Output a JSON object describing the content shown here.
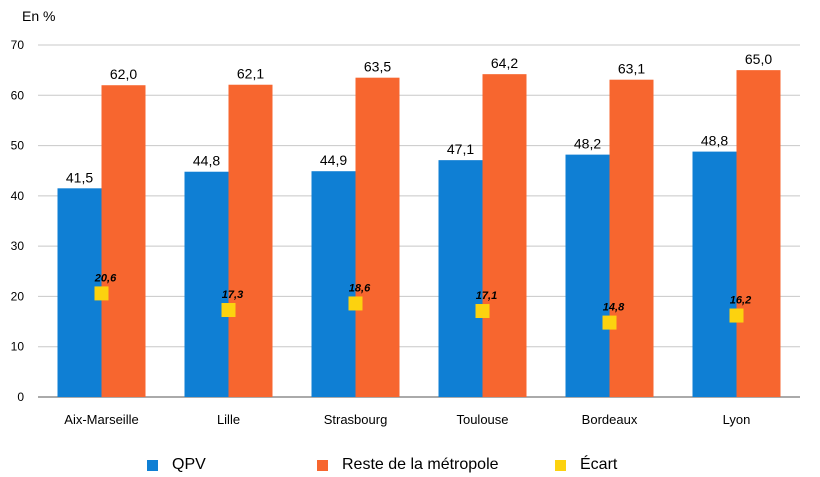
{
  "y_unit_label": "En %",
  "chart_data": {
    "type": "bar",
    "categories": [
      "Aix-Marseille",
      "Lille",
      "Strasbourg",
      "Toulouse",
      "Bordeaux",
      "Lyon"
    ],
    "series": [
      {
        "name": "QPV",
        "kind": "bar",
        "color": "#0f7fd4",
        "values": [
          41.5,
          44.8,
          44.9,
          47.1,
          48.2,
          48.8
        ],
        "labels": [
          "41,5",
          "44,8",
          "44,9",
          "47,1",
          "48,2",
          "48,8"
        ]
      },
      {
        "name": "Reste de la métropole",
        "kind": "bar",
        "color": "#f7662f",
        "values": [
          62.0,
          62.1,
          63.5,
          64.2,
          63.1,
          65.0
        ],
        "labels": [
          "62,0",
          "62,1",
          "63,5",
          "64,2",
          "63,1",
          "65,0"
        ]
      },
      {
        "name": "Écart",
        "kind": "marker",
        "color": "#fcd20f",
        "values": [
          20.6,
          17.3,
          18.6,
          17.1,
          14.8,
          16.2
        ],
        "labels": [
          "20,6",
          "17,3",
          "18,6",
          "17,1",
          "14,8",
          "16,2"
        ]
      }
    ],
    "ylim": [
      0,
      70
    ],
    "yticks": [
      0,
      10,
      20,
      30,
      40,
      50,
      60,
      70
    ],
    "grid": true,
    "legend_position": "bottom"
  }
}
